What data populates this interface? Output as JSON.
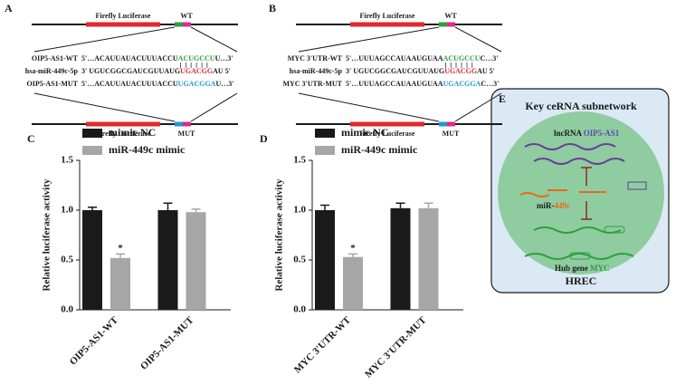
{
  "panel_a": {
    "label": "A",
    "gene": "Firefly Luciferase",
    "site_wt": "WT",
    "site_mut": "MUT",
    "rows": [
      {
        "name": "OIP5-AS1-WT",
        "parts": [
          {
            "text": "5'…ACAUUAUACUUUACCU",
            "color": "#1a1a1a"
          },
          {
            "text": "ACUGCCU",
            "color": "#2e9e3e"
          },
          {
            "text": "U…3'",
            "color": "#1a1a1a"
          }
        ]
      },
      {
        "name": "hsa-miR-449c-5p",
        "name_color": "#e0282e",
        "parts": [
          {
            "text": "3' UGUCGGCGAUCGUUAUG",
            "color": "#1a1a1a"
          },
          {
            "text": "UGACGG",
            "color": "#e0282e"
          },
          {
            "text": "AU 5'",
            "color": "#1a1a1a"
          }
        ]
      },
      {
        "name": "OIP5-AS1-MUT",
        "parts": [
          {
            "text": "5'…ACAUUAUACUUUACCU",
            "color": "#1a1a1a"
          },
          {
            "text": "UGACGGA",
            "color": "#1e9ad6"
          },
          {
            "text": "U…3'",
            "color": "#1a1a1a"
          }
        ]
      }
    ]
  },
  "panel_b": {
    "label": "B",
    "gene": "Firefly Luciferase",
    "site_wt": "WT",
    "site_mut": "MUT",
    "rows": [
      {
        "name": "MYC 3'UTR-WT",
        "parts": [
          {
            "text": "5'…UUUAGCCAUAAUGUAA",
            "color": "#1a1a1a"
          },
          {
            "text": "ACUGCCU",
            "color": "#2e9e3e"
          },
          {
            "text": "C…3'",
            "color": "#1a1a1a"
          }
        ]
      },
      {
        "name": "hsa-miR-449c-5p",
        "name_color": "#e0282e",
        "parts": [
          {
            "text": "3' UGUCGGCGAUCGUUAUG",
            "color": "#1a1a1a"
          },
          {
            "text": "UGACGG",
            "color": "#e0282e"
          },
          {
            "text": "AU 5'",
            "color": "#1a1a1a"
          }
        ]
      },
      {
        "name": "MYC 3'UTR-MUT",
        "parts": [
          {
            "text": "5'…UUUAGCCAUAAUGUAA",
            "color": "#1a1a1a"
          },
          {
            "text": "UGACGGA",
            "color": "#1e9ad6"
          },
          {
            "text": "C…3'",
            "color": "#1a1a1a"
          }
        ]
      }
    ]
  },
  "chart_data": [
    {
      "type": "bar",
      "label": "C",
      "ylabel": "Relative luciferase activity",
      "categories": [
        "OIP5-AS1-WT",
        "OIP5-AS1-MUT"
      ],
      "series": [
        {
          "name": "mimic NC",
          "color": "#1a1a1a",
          "values": [
            1.0,
            1.0
          ],
          "errors": [
            0.03,
            0.07
          ]
        },
        {
          "name": "miR-449c mimic",
          "color": "#a6a6a6",
          "values": [
            0.52,
            0.98
          ],
          "errors": [
            0.04,
            0.03
          ],
          "significance": [
            "*",
            null
          ]
        }
      ],
      "ylim": [
        0,
        1.5
      ],
      "yticks": [
        {
          "value": 0,
          "label": "0.0"
        },
        0.5,
        {
          "value": 1,
          "label": "1.0"
        },
        1.5
      ]
    },
    {
      "type": "bar",
      "label": "D",
      "ylabel": "Relative luciferase activity",
      "categories": [
        "MYC 3'UTR-WT",
        "MYC 3'UTR-MUT"
      ],
      "series": [
        {
          "name": "mimic NC",
          "color": "#1a1a1a",
          "values": [
            1.0,
            1.02
          ],
          "errors": [
            0.05,
            0.05
          ]
        },
        {
          "name": "miR-449c mimic",
          "color": "#a6a6a6",
          "values": [
            0.53,
            1.02
          ],
          "errors": [
            0.03,
            0.05
          ],
          "significance": [
            "*",
            null
          ]
        }
      ],
      "ylim": [
        0,
        1.5
      ],
      "yticks": [
        {
          "value": 0,
          "label": "0.0"
        },
        0.5,
        {
          "value": 1,
          "label": "1.0"
        },
        1.5
      ]
    }
  ],
  "panel_e": {
    "label": "E",
    "title": "Key ceRNA subnetwork",
    "lncrna": {
      "prefix": "lncRNA",
      "name": "OIP5-AS1"
    },
    "mirna": {
      "prefix": "miR-",
      "name": "449c"
    },
    "hub": {
      "prefix": "Hub gene",
      "name": "MYC"
    },
    "cell": "HREC"
  }
}
